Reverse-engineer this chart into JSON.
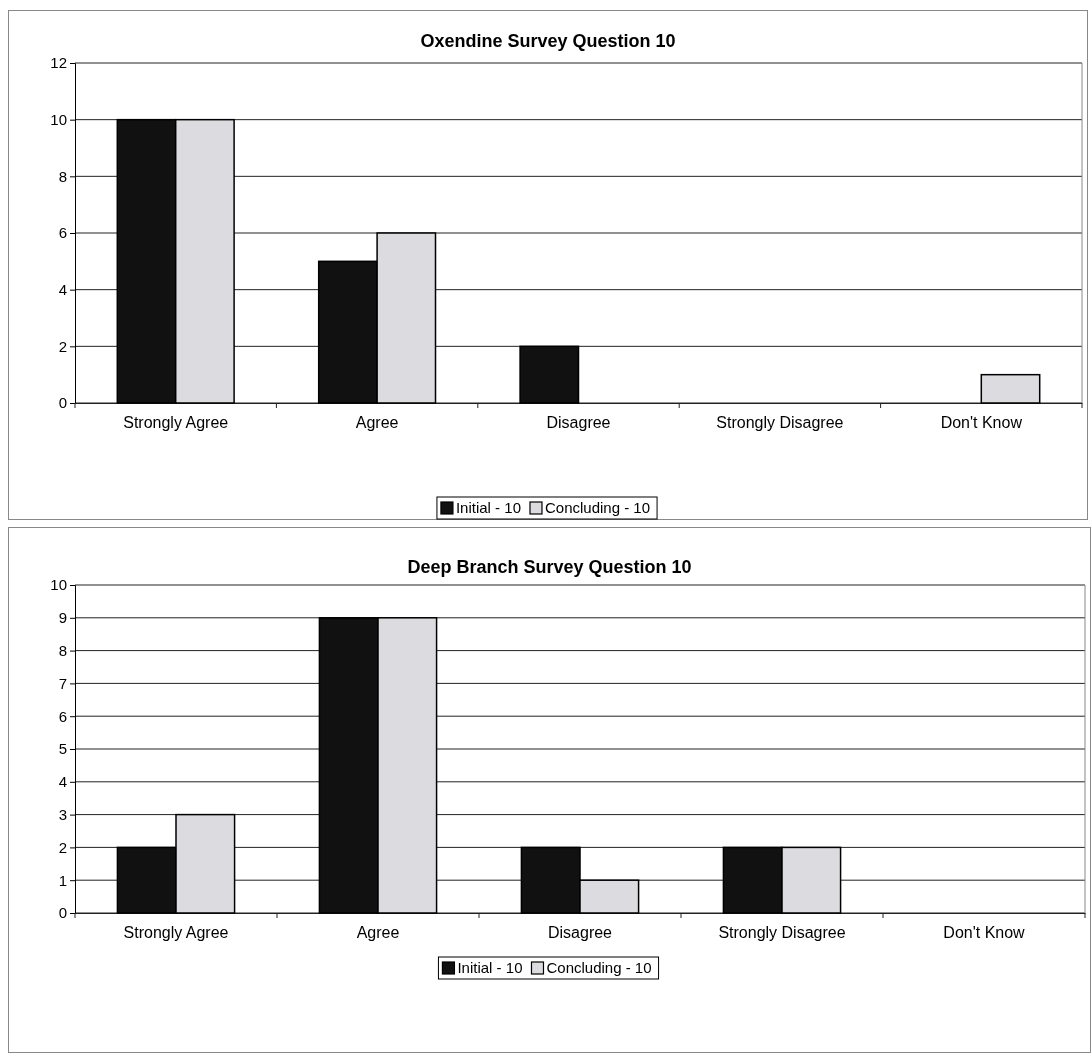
{
  "chart_data": [
    {
      "type": "bar",
      "title": "Oxendine Survey Question 10",
      "categories": [
        "Strongly Agree",
        "Agree",
        "Disagree",
        "Strongly Disagree",
        "Don't Know"
      ],
      "series": [
        {
          "name": "Initial - 10",
          "color": "#111111",
          "values": [
            10,
            5,
            2,
            0,
            0
          ]
        },
        {
          "name": "Concluding - 10",
          "color": "#dcdce0",
          "values": [
            10,
            6,
            0,
            0,
            1
          ]
        }
      ],
      "ylim": [
        0,
        12
      ],
      "yticks": [
        0,
        2,
        4,
        6,
        8,
        10,
        12
      ],
      "grid": "y",
      "legend": "bottom"
    },
    {
      "type": "bar",
      "title": "Deep Branch Survey Question 10",
      "categories": [
        "Strongly Agree",
        "Agree",
        "Disagree",
        "Strongly Disagree",
        "Don't Know"
      ],
      "series": [
        {
          "name": "Initial - 10",
          "color": "#111111",
          "values": [
            2,
            9,
            2,
            2,
            0
          ]
        },
        {
          "name": "Concluding - 10",
          "color": "#dcdce0",
          "values": [
            3,
            9,
            1,
            2,
            0
          ]
        }
      ],
      "ylim": [
        0,
        10
      ],
      "yticks": [
        0,
        1,
        2,
        3,
        4,
        5,
        6,
        7,
        8,
        9,
        10
      ],
      "grid": "y",
      "legend": "bottom"
    }
  ]
}
